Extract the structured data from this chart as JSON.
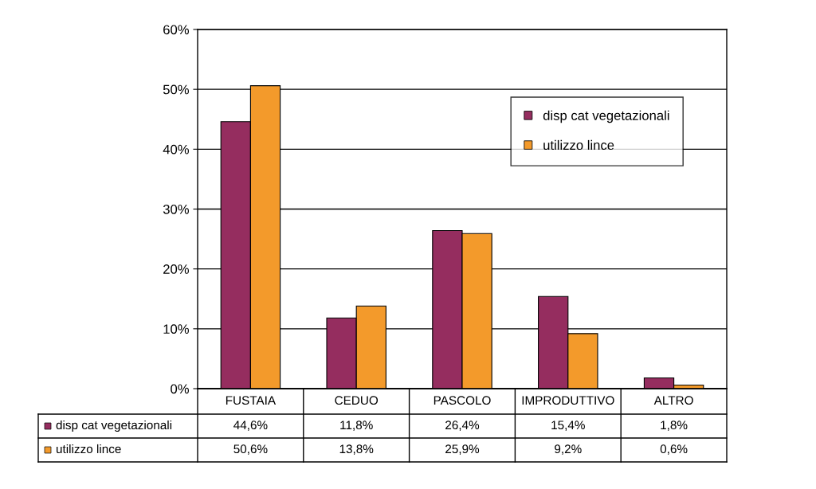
{
  "chart_data": {
    "type": "bar",
    "categories": [
      "FUSTAIA",
      "CEDUO",
      "PASCOLO",
      "IMPRODUTTIVO",
      "ALTRO"
    ],
    "series": [
      {
        "name": "disp cat vegetazionali",
        "color": "#952d5f",
        "values": [
          44.6,
          11.8,
          26.4,
          15.4,
          1.8
        ],
        "value_labels": [
          "44,6%",
          "11,8%",
          "26,4%",
          "15,4%",
          "1,8%"
        ]
      },
      {
        "name": "utilizzo lince",
        "color": "#f39a2b",
        "values": [
          50.6,
          13.8,
          25.9,
          9.2,
          0.6
        ],
        "value_labels": [
          "50,6%",
          "13,8%",
          "25,9%",
          "9,2%",
          "0,6%"
        ]
      }
    ],
    "ylim": [
      0,
      60
    ],
    "yticks": [
      {
        "value": 0,
        "label": "0%"
      },
      {
        "value": 10,
        "label": "10%"
      },
      {
        "value": 20,
        "label": "20%"
      },
      {
        "value": 30,
        "label": "30%"
      },
      {
        "value": 40,
        "label": "40%"
      },
      {
        "value": 50,
        "label": "50%"
      },
      {
        "value": 60,
        "label": "60%"
      }
    ],
    "grid": "y",
    "legend": "top right"
  }
}
